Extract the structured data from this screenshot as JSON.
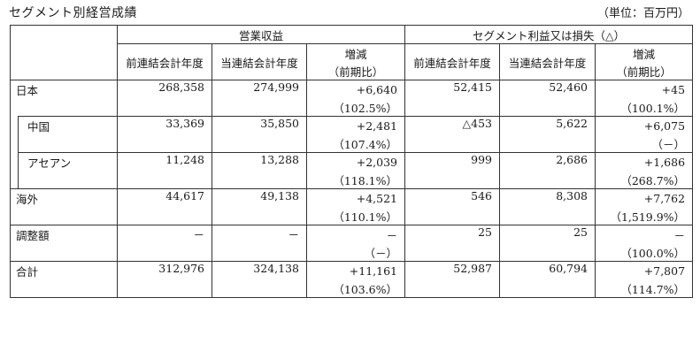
{
  "title": "セグメント別経営成績",
  "unit": "（単位：百万円）",
  "headers": {
    "group1": "営業収益",
    "group2": "セグメント利益又は損失（△）",
    "prev": "前連結会計年度",
    "curr": "当連結会計年度",
    "change": "増減",
    "ratio": "（前期比）"
  },
  "rows": {
    "japan": {
      "label": "日本",
      "r_prev": "268,358",
      "r_curr": "274,999",
      "r_chg": "+6,640",
      "r_pct": "（102.5%）",
      "p_prev": "52,415",
      "p_curr": "52,460",
      "p_chg": "+45",
      "p_pct": "（100.1%）"
    },
    "china": {
      "label": "中国",
      "r_prev": "33,369",
      "r_curr": "35,850",
      "r_chg": "+2,481",
      "r_pct": "（107.4%）",
      "p_prev": "△453",
      "p_curr": "5,622",
      "p_chg": "+6,075",
      "p_pct": "（－）"
    },
    "asean": {
      "label": "アセアン",
      "r_prev": "11,248",
      "r_curr": "13,288",
      "r_chg": "+2,039",
      "r_pct": "（118.1%）",
      "p_prev": "999",
      "p_curr": "2,686",
      "p_chg": "+1,686",
      "p_pct": "（268.7%）"
    },
    "overseas": {
      "label": "海外",
      "r_prev": "44,617",
      "r_curr": "49,138",
      "r_chg": "+4,521",
      "r_pct": "（110.1%）",
      "p_prev": "546",
      "p_curr": "8,308",
      "p_chg": "+7,762",
      "p_pct": "（1,519.9%）"
    },
    "adjust": {
      "label": "調整額",
      "r_prev": "－",
      "r_curr": "－",
      "r_chg": "－",
      "r_pct": "（－）",
      "p_prev": "25",
      "p_curr": "25",
      "p_chg": "－",
      "p_pct": "（100.0%）"
    },
    "total": {
      "label": "合計",
      "r_prev": "312,976",
      "r_curr": "324,138",
      "r_chg": "+11,161",
      "r_pct": "（103.6%）",
      "p_prev": "52,987",
      "p_curr": "60,794",
      "p_chg": "+7,807",
      "p_pct": "（114.7%）"
    }
  }
}
